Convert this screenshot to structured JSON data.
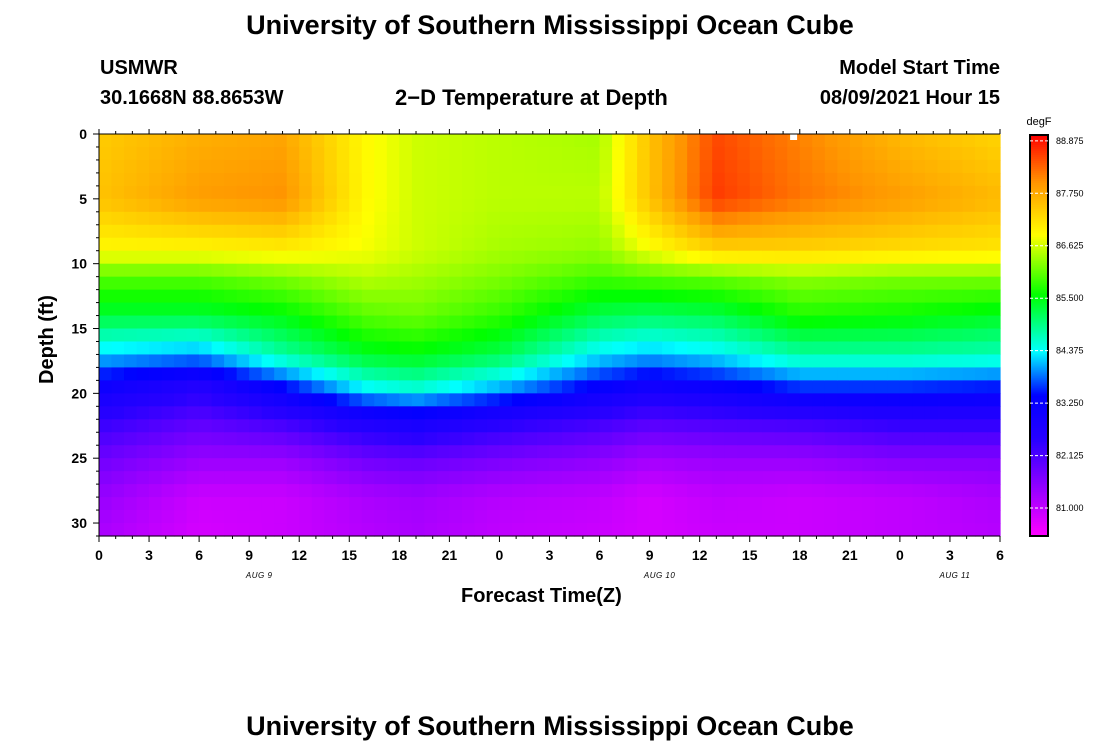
{
  "header": {
    "title_top": "University of Southern Mississippi Ocean Cube",
    "title_bottom": "University of Southern Mississippi Ocean Cube",
    "station": "USMWR",
    "coords": "30.1668N  88.8653W",
    "plot_title": "2−D Temperature at Depth",
    "model_start_label": "Model Start Time",
    "model_start_value": "08/09/2021 Hour 15"
  },
  "chart_data": {
    "type": "heatmap",
    "title": "2−D Temperature at Depth",
    "xlabel": "Forecast Time(Z)",
    "ylabel": "Depth (ft)",
    "x_tick_labels": [
      "0",
      "3",
      "6",
      "9",
      "12",
      "15",
      "18",
      "21",
      "0",
      "3",
      "6",
      "9",
      "12",
      "15",
      "18",
      "21",
      "0",
      "3",
      "6"
    ],
    "date_labels": [
      "AUG 9",
      "AUG 10",
      "AUG 11"
    ],
    "y_ticks": [
      0,
      5,
      10,
      15,
      20,
      25,
      30
    ],
    "ylim": [
      0,
      31
    ],
    "xlim_hours": [
      0,
      54
    ],
    "colorbar": {
      "unit": "degF",
      "min": 80.4,
      "max": 89.0,
      "tick_values": [
        88.875,
        87.75,
        86.625,
        85.5,
        84.375,
        83.25,
        82.125,
        81.0
      ],
      "tick_labels": [
        "88.875",
        "87.750",
        "86.625",
        "85.500",
        "84.375",
        "83.250",
        "82.125",
        "81.000"
      ]
    },
    "profile_depths_ft": [
      0,
      5,
      9,
      11,
      14,
      17,
      19.5,
      22,
      25,
      28,
      31
    ],
    "profiles": [
      {
        "hour": 0,
        "temps": [
          87.4,
          87.5,
          86.9,
          86.0,
          85.3,
          84.2,
          83.1,
          82.4,
          81.8,
          81.4,
          81.2
        ]
      },
      {
        "hour": 6,
        "temps": [
          87.7,
          87.9,
          86.9,
          86.0,
          85.3,
          84.0,
          82.6,
          82.0,
          81.4,
          80.9,
          80.8
        ]
      },
      {
        "hour": 11,
        "temps": [
          87.8,
          88.0,
          87.0,
          86.2,
          85.5,
          84.8,
          83.4,
          82.3,
          81.4,
          80.9,
          80.9
        ]
      },
      {
        "hour": 16,
        "temps": [
          86.9,
          86.9,
          86.8,
          86.5,
          86.0,
          85.4,
          84.4,
          82.8,
          81.8,
          81.2,
          81.1
        ]
      },
      {
        "hour": 19,
        "temps": [
          86.6,
          86.6,
          86.6,
          86.4,
          86.1,
          85.5,
          84.6,
          83.0,
          81.9,
          81.3,
          81.2
        ]
      },
      {
        "hour": 24,
        "temps": [
          86.5,
          86.5,
          86.4,
          86.2,
          85.8,
          85.2,
          84.1,
          82.6,
          81.7,
          81.1,
          81.0
        ]
      },
      {
        "hour": 30,
        "temps": [
          86.4,
          86.5,
          86.3,
          85.9,
          85.2,
          84.3,
          83.3,
          82.3,
          81.5,
          81.0,
          80.9
        ]
      },
      {
        "hour": 33,
        "temps": [
          87.5,
          87.5,
          86.8,
          86.0,
          85.1,
          84.1,
          83.0,
          82.1,
          81.3,
          80.8,
          80.8
        ]
      },
      {
        "hour": 37,
        "temps": [
          88.5,
          88.6,
          87.3,
          86.1,
          85.2,
          84.3,
          83.2,
          82.2,
          81.4,
          81.0,
          80.9
        ]
      },
      {
        "hour": 42,
        "temps": [
          88.1,
          88.2,
          87.3,
          86.3,
          85.7,
          84.8,
          83.6,
          82.3,
          81.4,
          80.9,
          80.9
        ]
      },
      {
        "hour": 48,
        "temps": [
          87.6,
          87.9,
          87.2,
          86.2,
          85.6,
          84.8,
          83.6,
          82.5,
          81.6,
          81.0,
          81.0
        ]
      },
      {
        "hour": 54,
        "temps": [
          87.3,
          87.6,
          87.1,
          86.2,
          85.4,
          84.7,
          83.5,
          82.5,
          81.6,
          81.2,
          81.1
        ]
      }
    ]
  }
}
